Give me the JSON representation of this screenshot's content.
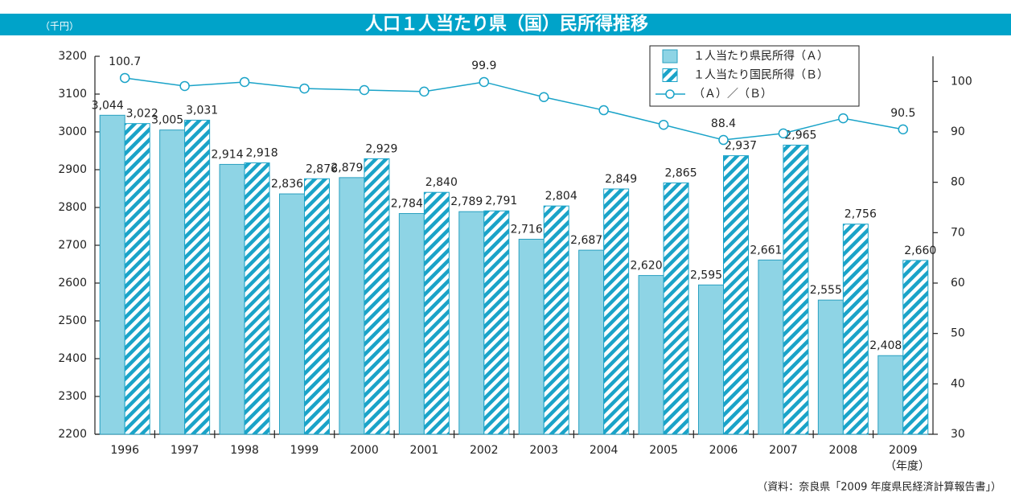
{
  "chart_data": {
    "type": "bar",
    "title": "人口１人当たり県（国）民所得推移",
    "y_unit": "（千円）",
    "x_unit": "（年度）",
    "source": "（資料：奈良県「2009 年度県民経済計算報告書」）",
    "categories": [
      "1996",
      "1997",
      "1998",
      "1999",
      "2000",
      "2001",
      "2002",
      "2003",
      "2004",
      "2005",
      "2006",
      "2007",
      "2008",
      "2009"
    ],
    "series": [
      {
        "name": "１人当たり県民所得（Ａ）",
        "color": "#8ed4e5",
        "values": [
          3044,
          3005,
          2914,
          2836,
          2879,
          2784,
          2789,
          2716,
          2687,
          2620,
          2595,
          2661,
          2555,
          2408
        ],
        "value_labels": [
          "3,044",
          "3,005",
          "2,914",
          "2,836",
          "2,879",
          "2,784",
          "2,789",
          "2,716",
          "2,687",
          "2,620",
          "2,595",
          "2,661",
          "2,555",
          "2,408"
        ]
      },
      {
        "name": "１人当たり国民所得（Ｂ）",
        "color": "#1aa3c8",
        "hatch": true,
        "values": [
          3022,
          3031,
          2918,
          2876,
          2929,
          2840,
          2791,
          2804,
          2849,
          2865,
          2937,
          2965,
          2756,
          2660
        ],
        "value_labels": [
          "3,022",
          "3,031",
          "2,918",
          "2,876",
          "2,929",
          "2,840",
          "2,791",
          "2,804",
          "2,849",
          "2,865",
          "2,937",
          "2,965",
          "2,756",
          "2,660"
        ]
      },
      {
        "name": "（Ａ）／（Ｂ）",
        "type": "line",
        "axis": "y2",
        "color": "#1aa3c8",
        "values": [
          100.7,
          99.1,
          99.9,
          98.6,
          98.3,
          98.0,
          99.9,
          96.9,
          94.3,
          91.4,
          88.4,
          89.7,
          92.7,
          90.5
        ],
        "value_labels": [
          "100.7",
          null,
          null,
          null,
          null,
          null,
          "99.9",
          null,
          null,
          null,
          "88.4",
          null,
          null,
          "90.5"
        ]
      }
    ],
    "ylim": [
      2200,
      3200
    ],
    "yticks": [
      2200,
      2300,
      2400,
      2500,
      2600,
      2700,
      2800,
      2900,
      3000,
      3100,
      3200
    ],
    "y2lim": [
      30,
      105
    ],
    "y2ticks": [
      30,
      40,
      50,
      60,
      70,
      80,
      90,
      100
    ]
  }
}
